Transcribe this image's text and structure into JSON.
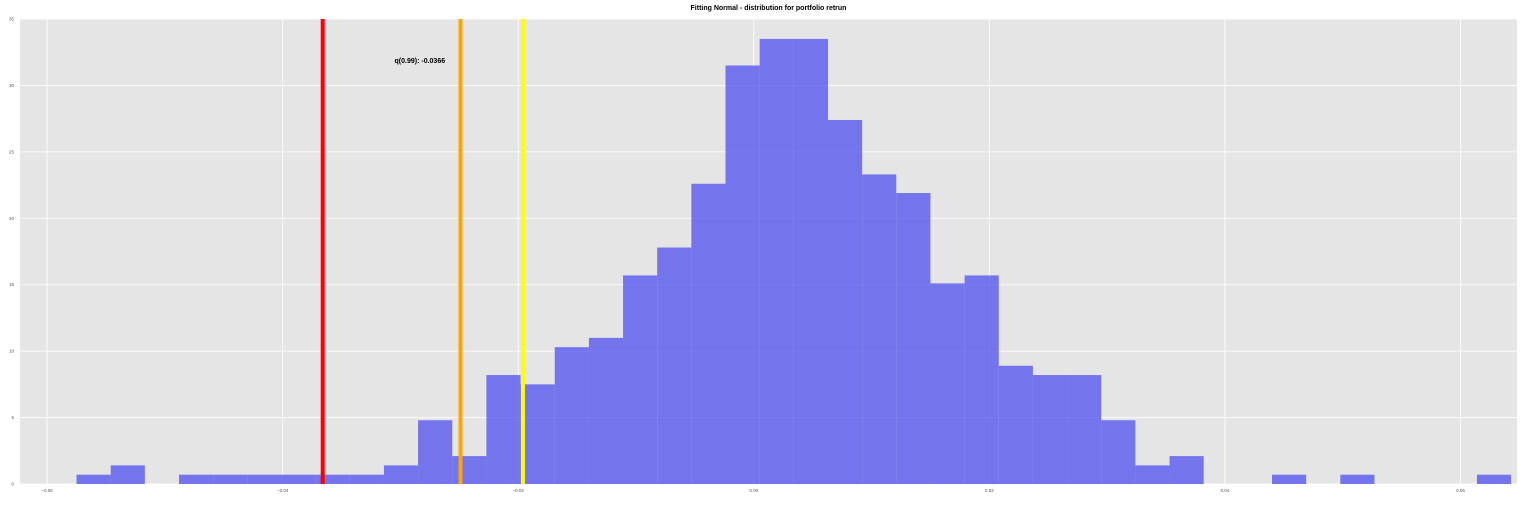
{
  "chart_data": {
    "type": "bar",
    "title": "Fitting Normal - distribution for portfolio retrun",
    "xlabel": "",
    "ylabel": "",
    "xlim": [
      -0.0623,
      0.0648
    ],
    "ylim": [
      0,
      35
    ],
    "grid": true,
    "x_ticks": [
      -0.06,
      -0.04,
      -0.02,
      0.0,
      0.02,
      0.04,
      0.06
    ],
    "x_tick_labels": [
      "−0.06",
      "−0.04",
      "−0.02",
      "0.00",
      "0.02",
      "0.04",
      "0.06"
    ],
    "y_ticks": [
      0,
      5,
      10,
      15,
      20,
      25,
      30,
      35
    ],
    "y_tick_labels": [
      "0",
      "5",
      "10",
      "15",
      "20",
      "25",
      "30",
      "35"
    ],
    "bins": {
      "start": -0.0575,
      "width": 0.0029,
      "values": [
        0.7,
        1.4,
        0,
        0.7,
        0.7,
        0.7,
        0.7,
        0.7,
        0.7,
        1.4,
        4.8,
        2.1,
        8.2,
        7.5,
        10.3,
        11.0,
        15.7,
        17.8,
        22.6,
        31.5,
        33.5,
        33.5,
        27.4,
        23.3,
        21.9,
        15.1,
        15.7,
        8.9,
        8.2,
        8.2,
        4.8,
        1.4,
        2.1,
        0,
        0,
        0.7,
        0,
        0.7,
        0,
        0,
        0,
        0.7
      ]
    },
    "vlines": [
      {
        "x": -0.0366,
        "color": "#ff0000"
      },
      {
        "x": -0.0249,
        "color": "#ffa500"
      },
      {
        "x": -0.0196,
        "color": "#ffff00"
      }
    ],
    "annotation": {
      "text": "q(0.99): -0.0366",
      "x": -0.0305,
      "y": 31.7
    },
    "colors": {
      "bars": "#5555ee",
      "plot_background": "#e5e5e5",
      "grid": "#ffffff"
    }
  }
}
